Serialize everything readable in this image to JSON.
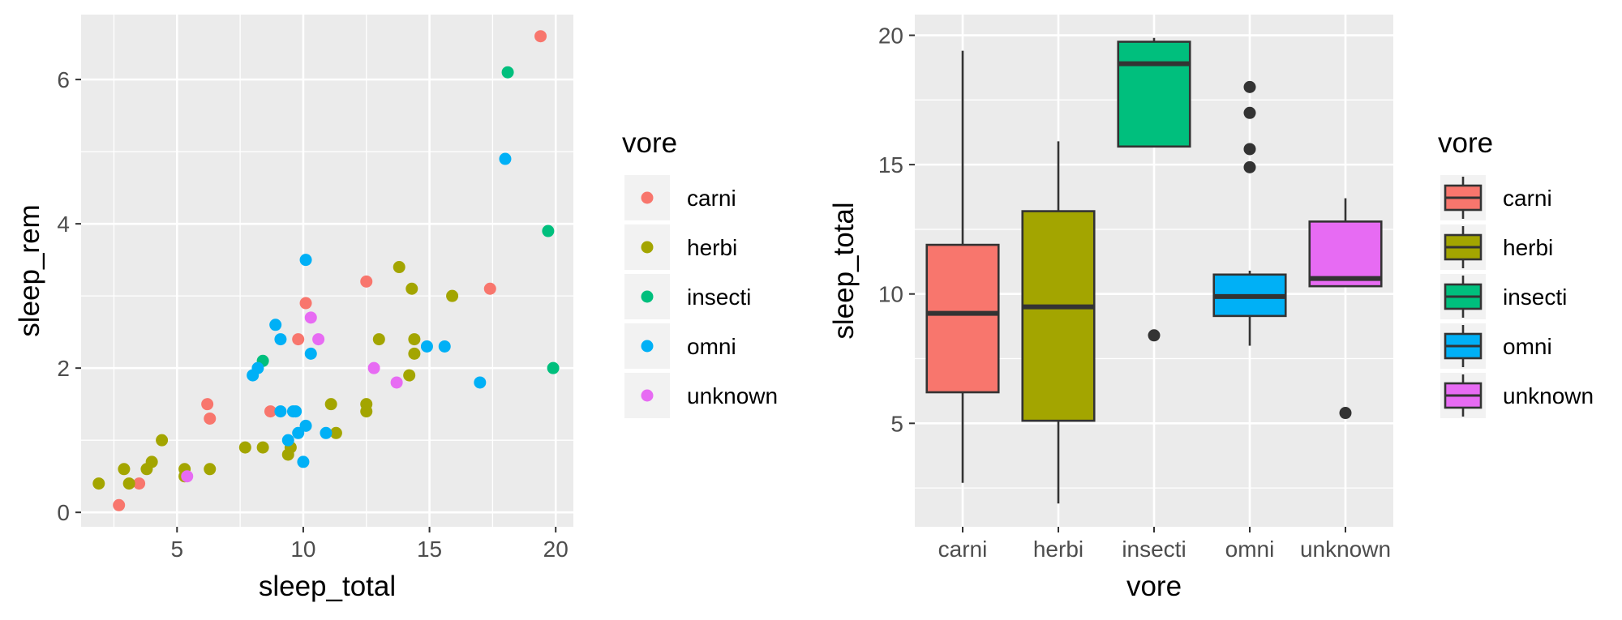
{
  "colors": {
    "panel_bg": "#ebebeb",
    "grid_major": "#ffffff",
    "carni": "#F8766D",
    "herbi": "#A3A500",
    "insecti": "#00BF7D",
    "omni": "#00B0F6",
    "unknown": "#E76BF3",
    "outline": "#333333"
  },
  "chart_data": [
    {
      "type": "scatter",
      "xlabel": "sleep_total",
      "ylabel": "sleep_rem",
      "xlim": [
        1.2,
        20.7
      ],
      "ylim": [
        -0.2,
        6.9
      ],
      "x_ticks": [
        5,
        10,
        15,
        20
      ],
      "x_tick_labels": [
        "5",
        "10",
        "15",
        "20"
      ],
      "y_ticks": [
        0,
        2,
        4,
        6
      ],
      "y_tick_labels": [
        "0",
        "2",
        "4",
        "6"
      ],
      "legend": {
        "title": "vore",
        "placement": "right",
        "entries": [
          "carni",
          "herbi",
          "insecti",
          "omni",
          "unknown"
        ]
      },
      "series": [
        {
          "name": "carni",
          "points": [
            [
              2.7,
              0.1
            ],
            [
              3.5,
              0.4
            ],
            [
              6.2,
              1.5
            ],
            [
              6.3,
              1.3
            ],
            [
              8.7,
              1.4
            ],
            [
              9.8,
              2.4
            ],
            [
              10.1,
              2.9
            ],
            [
              12.5,
              3.2
            ],
            [
              17.4,
              3.1
            ],
            [
              19.4,
              6.6
            ]
          ]
        },
        {
          "name": "herbi",
          "points": [
            [
              1.9,
              0.4
            ],
            [
              2.9,
              0.6
            ],
            [
              3.1,
              0.4
            ],
            [
              3.8,
              0.6
            ],
            [
              4.0,
              0.7
            ],
            [
              4.4,
              1.0
            ],
            [
              5.3,
              0.6
            ],
            [
              5.3,
              0.5
            ],
            [
              6.3,
              0.6
            ],
            [
              7.7,
              0.9
            ],
            [
              8.4,
              0.9
            ],
            [
              9.4,
              0.8
            ],
            [
              9.5,
              0.9
            ],
            [
              11.1,
              1.5
            ],
            [
              11.3,
              1.1
            ],
            [
              12.5,
              1.4
            ],
            [
              12.5,
              1.5
            ],
            [
              13.0,
              2.4
            ],
            [
              13.8,
              3.4
            ],
            [
              14.2,
              1.9
            ],
            [
              14.3,
              3.1
            ],
            [
              14.4,
              2.4
            ],
            [
              14.4,
              2.2
            ],
            [
              15.9,
              3.0
            ]
          ]
        },
        {
          "name": "insecti",
          "points": [
            [
              8.4,
              2.1
            ],
            [
              18.1,
              6.1
            ],
            [
              19.7,
              3.9
            ],
            [
              19.9,
              2.0
            ]
          ]
        },
        {
          "name": "omni",
          "points": [
            [
              8.0,
              1.9
            ],
            [
              8.2,
              2.0
            ],
            [
              8.9,
              2.6
            ],
            [
              9.1,
              1.4
            ],
            [
              9.1,
              2.4
            ],
            [
              9.4,
              1.0
            ],
            [
              9.6,
              1.4
            ],
            [
              9.7,
              1.4
            ],
            [
              9.8,
              1.1
            ],
            [
              10.0,
              0.7
            ],
            [
              10.1,
              1.2
            ],
            [
              10.1,
              3.5
            ],
            [
              10.3,
              2.2
            ],
            [
              10.9,
              1.1
            ],
            [
              14.9,
              2.3
            ],
            [
              15.6,
              2.3
            ],
            [
              17.0,
              1.8
            ],
            [
              18.0,
              4.9
            ]
          ]
        },
        {
          "name": "unknown",
          "points": [
            [
              5.4,
              0.5
            ],
            [
              10.3,
              2.7
            ],
            [
              10.6,
              2.4
            ],
            [
              12.8,
              2.0
            ],
            [
              13.7,
              1.8
            ]
          ]
        }
      ]
    },
    {
      "type": "box",
      "xlabel": "vore",
      "ylabel": "sleep_total",
      "ylim": [
        1.0,
        20.8
      ],
      "categories": [
        "carni",
        "herbi",
        "insecti",
        "omni",
        "unknown"
      ],
      "y_ticks": [
        5,
        10,
        15,
        20
      ],
      "y_tick_labels": [
        "5",
        "10",
        "15",
        "20"
      ],
      "legend": {
        "title": "vore",
        "placement": "right",
        "entries": [
          "carni",
          "herbi",
          "insecti",
          "omni",
          "unknown"
        ]
      },
      "boxes": [
        {
          "name": "carni",
          "whisker_low": 2.7,
          "q1": 6.2,
          "median": 9.25,
          "q3": 11.9,
          "whisker_high": 19.4,
          "outliers": []
        },
        {
          "name": "herbi",
          "whisker_low": 1.9,
          "q1": 5.1,
          "median": 9.5,
          "q3": 13.2,
          "whisker_high": 15.9,
          "outliers": []
        },
        {
          "name": "insecti",
          "whisker_low": 15.7,
          "q1": 15.7,
          "median": 18.9,
          "q3": 19.75,
          "whisker_high": 19.9,
          "outliers": [
            8.4
          ]
        },
        {
          "name": "omni",
          "whisker_low": 8.0,
          "q1": 9.15,
          "median": 9.9,
          "q3": 10.75,
          "whisker_high": 10.9,
          "outliers": [
            14.9,
            15.6,
            17.0,
            18.0
          ]
        },
        {
          "name": "unknown",
          "whisker_low": 10.3,
          "q1": 10.3,
          "median": 10.6,
          "q3": 12.8,
          "whisker_high": 13.7,
          "outliers": [
            5.4
          ]
        }
      ]
    }
  ]
}
